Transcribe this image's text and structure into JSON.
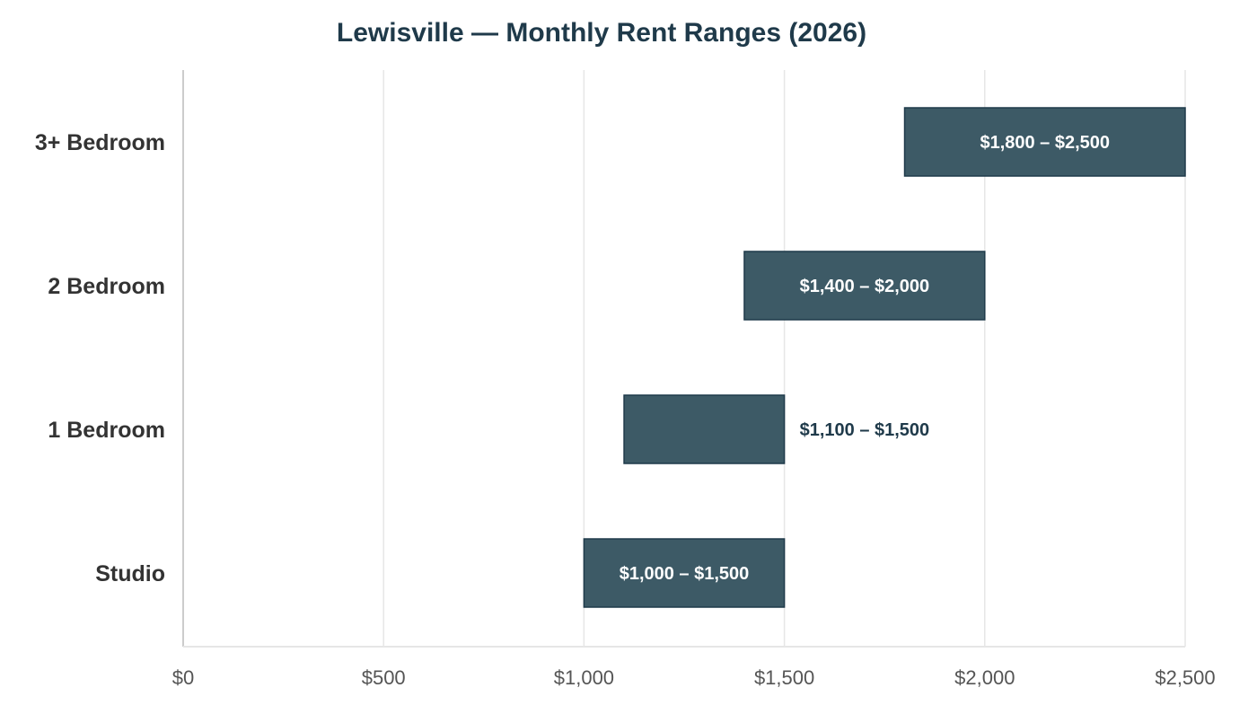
{
  "chart_data": {
    "type": "bar",
    "orientation": "horizontal",
    "title": "Lewisville — Monthly Rent Ranges (2026)",
    "xlabel": "",
    "ylabel": "",
    "xlim": [
      0,
      2500
    ],
    "grid": "vertical",
    "legend": "none",
    "x_ticks": [
      {
        "value": 0,
        "label": "$0"
      },
      {
        "value": 500,
        "label": "$500"
      },
      {
        "value": 1000,
        "label": "$1,000"
      },
      {
        "value": 1500,
        "label": "$1,500"
      },
      {
        "value": 2000,
        "label": "$2,000"
      },
      {
        "value": 2500,
        "label": "$2,500"
      }
    ],
    "categories": [
      "3+ Bedroom",
      "2 Bedroom",
      "1 Bedroom",
      "Studio"
    ],
    "ranges": [
      {
        "category": "3+ Bedroom",
        "low": 1800,
        "high": 2500,
        "label": "$1,800 – $2,500",
        "label_position": "inside"
      },
      {
        "category": "2 Bedroom",
        "low": 1400,
        "high": 2000,
        "label": "$1,400 – $2,000",
        "label_position": "inside"
      },
      {
        "category": "1 Bedroom",
        "low": 1100,
        "high": 1500,
        "label": "$1,100 – $1,500",
        "label_position": "outside"
      },
      {
        "category": "Studio",
        "low": 1000,
        "high": 1500,
        "label": "$1,000 – $1,500",
        "label_position": "inside"
      }
    ],
    "colors": {
      "bar_fill": "#3d5a66",
      "bar_stroke": "#1f3a4a",
      "inside_label": "#ffffff",
      "outside_label": "#1f3a4a",
      "grid": "#e6e6e6",
      "axis": "#bbbbbb",
      "category_text": "#333333",
      "tick_text": "#555555",
      "title": "#1f3a4a"
    }
  }
}
